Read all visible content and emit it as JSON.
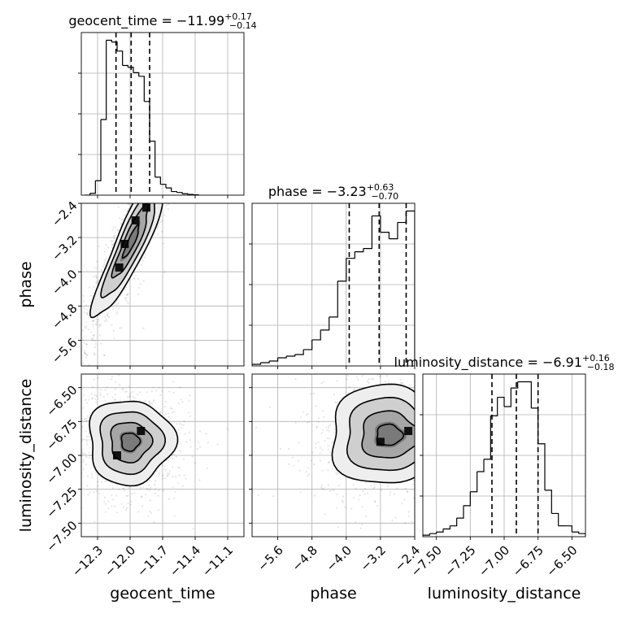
{
  "chart_data": {
    "type": "corner",
    "grid": true,
    "parameters": [
      {
        "name": "geocent_time",
        "axis_label": "geocent_time",
        "title": {
          "prefix": "geocent_time = ",
          "median": "−11.99",
          "plus": "+0.17",
          "minus": "−0.14"
        },
        "range": [
          -12.45,
          -10.95
        ],
        "ticks": [
          -12.3,
          -12.0,
          -11.7,
          -11.4,
          -11.1
        ],
        "tick_labels": [
          "−12.3",
          "−12.0",
          "−11.7",
          "−11.4",
          "−11.1"
        ],
        "quantiles": [
          -12.13,
          -11.99,
          -11.82
        ],
        "histogram": {
          "edges": [
            -12.42,
            -12.37,
            -12.32,
            -12.27,
            -12.22,
            -12.17,
            -12.12,
            -12.07,
            -12.02,
            -11.97,
            -11.92,
            -11.87,
            -11.82,
            -11.77,
            -11.72,
            -11.67,
            -11.62,
            -11.57,
            -11.52,
            -11.47,
            -11.42,
            -11.37
          ],
          "values": [
            0.0,
            0.01,
            0.08,
            0.42,
            0.86,
            0.85,
            0.8,
            0.72,
            0.71,
            0.68,
            0.66,
            0.52,
            0.3,
            0.1,
            0.06,
            0.04,
            0.02,
            0.015,
            0.008,
            0.004,
            0.002
          ]
        }
      },
      {
        "name": "phase",
        "axis_label": "phase",
        "title": {
          "prefix": "phase = ",
          "median": "−3.23",
          "plus": "+0.63",
          "minus": "−0.70"
        },
        "range": [
          -6.2,
          -2.4
        ],
        "ticks": [
          -5.6,
          -4.8,
          -4.0,
          -3.2,
          -2.4
        ],
        "tick_labels": [
          "−5.6",
          "−4.8",
          "−4.0",
          "−3.2",
          "−2.4"
        ],
        "quantiles": [
          -3.93,
          -3.23,
          -2.6
        ],
        "histogram": {
          "edges": [
            -6.2,
            -6.0,
            -5.8,
            -5.6,
            -5.4,
            -5.2,
            -5.0,
            -4.8,
            -4.6,
            -4.4,
            -4.2,
            -4.0,
            -3.8,
            -3.6,
            -3.4,
            -3.2,
            -3.0,
            -2.8,
            -2.6,
            -2.4
          ],
          "values": [
            0.01,
            0.02,
            0.03,
            0.05,
            0.06,
            0.07,
            0.1,
            0.16,
            0.22,
            0.3,
            0.52,
            0.66,
            0.7,
            0.72,
            0.92,
            0.82,
            0.78,
            0.88,
            0.95
          ]
        }
      },
      {
        "name": "luminosity_distance",
        "axis_label": "luminosity_distance",
        "title": {
          "prefix": "luminosity_distance = ",
          "median": "−6.91",
          "plus": "+0.16",
          "minus": "−0.18"
        },
        "range": [
          -7.6,
          -6.4
        ],
        "ticks": [
          -7.5,
          -7.25,
          -7.0,
          -6.75,
          -6.5
        ],
        "tick_labels": [
          "−7.50",
          "−7.25",
          "−7.00",
          "−6.75",
          "−6.50"
        ],
        "quantiles": [
          -7.09,
          -6.91,
          -6.75
        ],
        "histogram": {
          "edges": [
            -7.6,
            -7.55,
            -7.5,
            -7.45,
            -7.4,
            -7.35,
            -7.3,
            -7.25,
            -7.2,
            -7.15,
            -7.1,
            -7.05,
            -7.0,
            -6.95,
            -6.9,
            -6.85,
            -6.8,
            -6.75,
            -6.7,
            -6.65,
            -6.6,
            -6.55,
            -6.5,
            -6.45,
            -6.4
          ],
          "values": [
            0.01,
            0.02,
            0.03,
            0.05,
            0.07,
            0.12,
            0.2,
            0.29,
            0.42,
            0.5,
            0.78,
            0.9,
            0.84,
            0.96,
            1.0,
            1.0,
            0.83,
            0.6,
            0.3,
            0.15,
            0.07,
            0.07,
            0.03,
            0.02
          ]
        }
      }
    ],
    "density_panels": [
      {
        "x": "geocent_time",
        "y": "phase",
        "peak": [
          -11.99,
          -3.3
        ],
        "cov": [
          [
            0.026,
            0.12
          ],
          [
            0.12,
            0.7
          ]
        ],
        "heatmap_cells": [
          [
            -12.1,
            -3.9
          ],
          [
            -12.05,
            -3.35
          ],
          [
            -11.95,
            -2.8
          ],
          [
            -11.85,
            -2.5
          ]
        ]
      },
      {
        "x": "geocent_time",
        "y": "luminosity_distance",
        "peak": [
          -12.0,
          -6.9
        ],
        "cov": [
          [
            0.022,
            0.0
          ],
          [
            0.0,
            0.035
          ]
        ],
        "heatmap_cells": [
          [
            -12.12,
            -7.0
          ],
          [
            -11.9,
            -6.82
          ]
        ]
      },
      {
        "x": "phase",
        "y": "luminosity_distance",
        "peak": [
          -3.0,
          -6.85
        ],
        "cov": [
          [
            0.45,
            0.0
          ],
          [
            0.0,
            0.03
          ]
        ],
        "heatmap_cells": [
          [
            -2.55,
            -6.82
          ],
          [
            -3.2,
            -6.9
          ]
        ]
      }
    ]
  }
}
